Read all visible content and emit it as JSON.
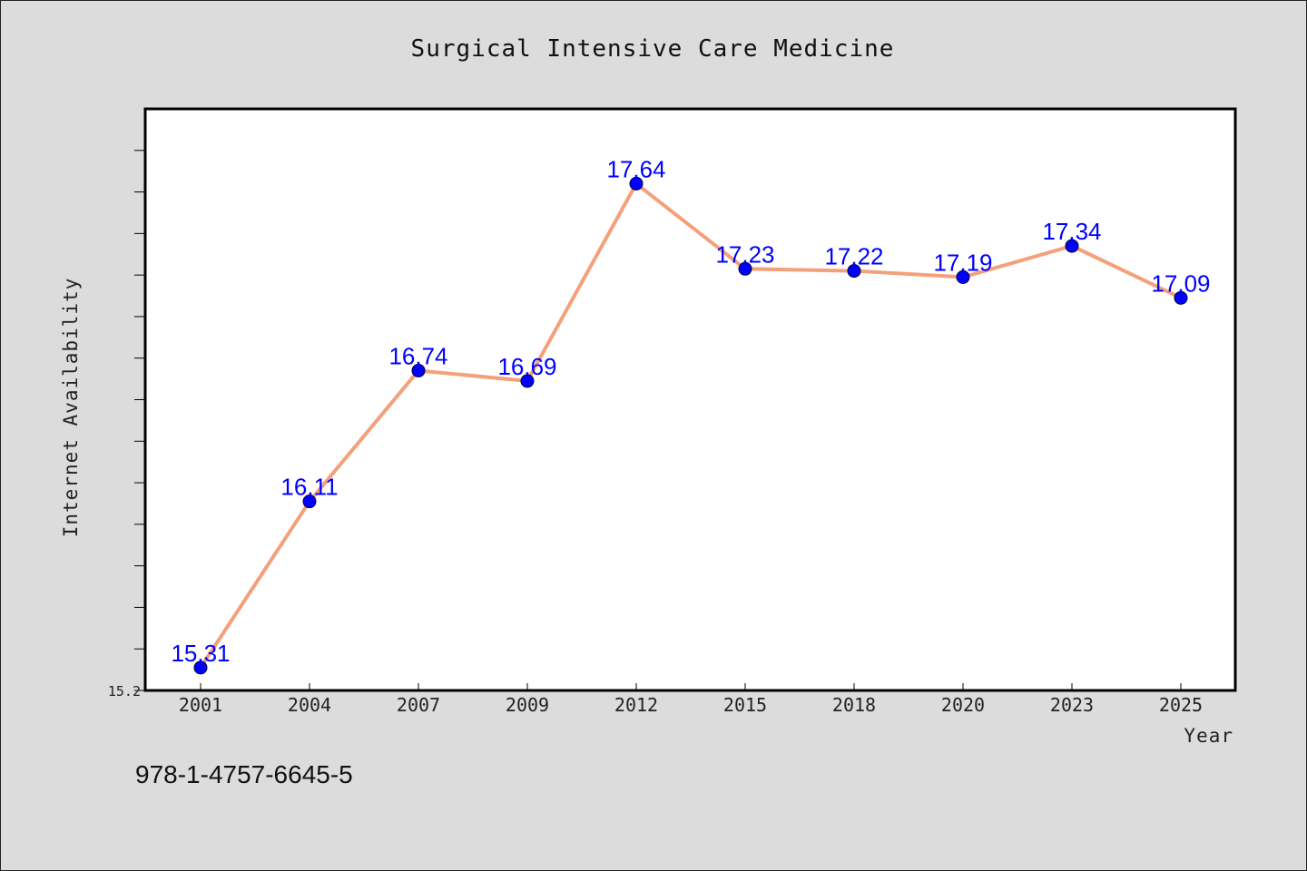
{
  "chart_data": {
    "type": "line",
    "title": "Surgical Intensive Care Medicine",
    "xlabel": "Year",
    "ylabel": "Internet Availability",
    "categories": [
      "2001",
      "2004",
      "2007",
      "2009",
      "2012",
      "2015",
      "2018",
      "2020",
      "2023",
      "2025"
    ],
    "series": [
      {
        "values": [
          15.31,
          16.11,
          16.74,
          16.69,
          17.64,
          17.23,
          17.22,
          17.19,
          17.34,
          17.09
        ]
      }
    ],
    "data_labels": [
      "15.31",
      "16.11",
      "16.74",
      "16.69",
      "17.64",
      "17.23",
      "17.22",
      "17.19",
      "17.34",
      "17.09"
    ],
    "ylim": [
      15.2,
      18.0
    ],
    "y_tick_label": "15.2",
    "grid": false,
    "legend": "none",
    "colors": {
      "line": "#f4a07a",
      "marker": "#0000ff",
      "data_label": "#0000ff",
      "background": "#dcdcdc",
      "plot_background": "#ffffff"
    }
  },
  "footer": {
    "isbn": "978-1-4757-6645-5"
  }
}
